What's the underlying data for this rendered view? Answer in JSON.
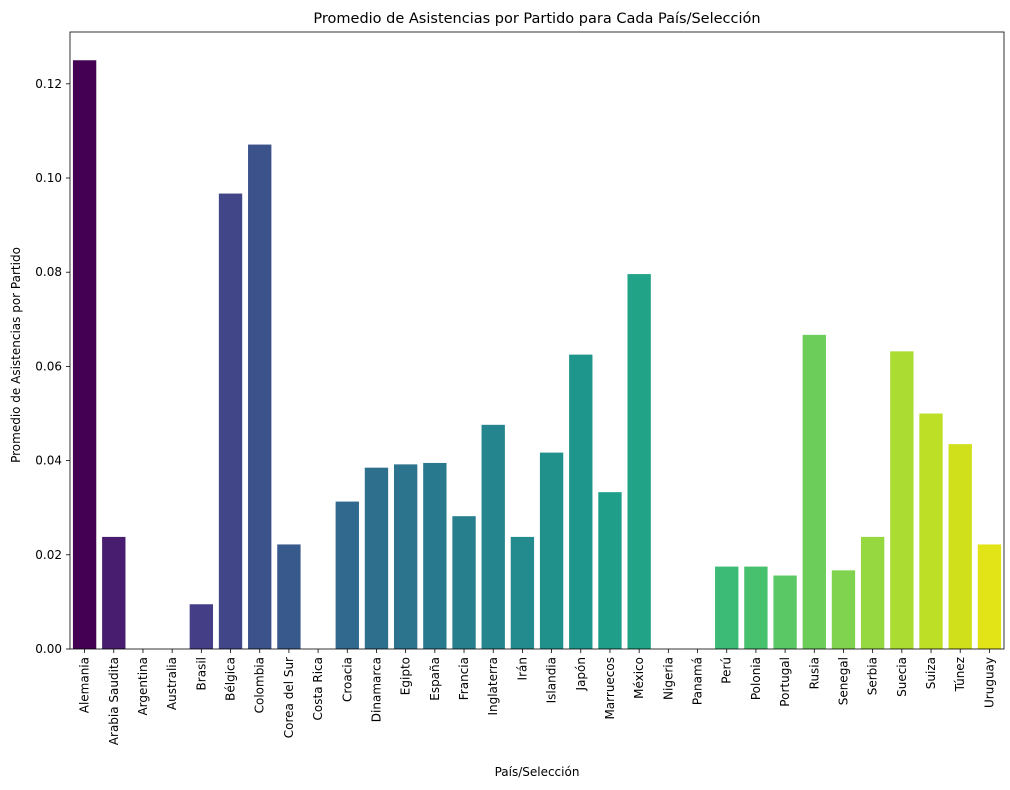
{
  "chart_data": {
    "type": "bar",
    "title": "Promedio de Asistencias por Partido para Cada País/Selección",
    "xlabel": "País/Selección",
    "ylabel": "Promedio de Asistencias por Partido",
    "ylim": [
      0,
      0.131
    ],
    "yticks": [
      "0.00",
      "0.02",
      "0.04",
      "0.06",
      "0.08",
      "0.10",
      "0.12"
    ],
    "grid": false,
    "legend": false,
    "palette": "viridis",
    "categories": [
      "Alemania",
      "Arabia Saudita",
      "Argentina",
      "Australia",
      "Brasil",
      "Bélgica",
      "Colombia",
      "Corea del Sur",
      "Costa Rica",
      "Croacia",
      "Dinamarca",
      "Egipto",
      "España",
      "Francia",
      "Inglaterra",
      "Irán",
      "Islandia",
      "Japón",
      "Marruecos",
      "México",
      "Nigeria",
      "Panamá",
      "Perú",
      "Polonia",
      "Portugal",
      "Rusia",
      "Senegal",
      "Serbia",
      "Suecia",
      "Suiza",
      "Túnez",
      "Uruguay"
    ],
    "values": [
      0.125,
      0.0238,
      0.0,
      0.0,
      0.0095,
      0.0967,
      0.1071,
      0.0222,
      0.0,
      0.0313,
      0.0385,
      0.0392,
      0.0395,
      0.0282,
      0.0476,
      0.0238,
      0.0417,
      0.0625,
      0.0333,
      0.0796,
      0.0,
      0.0,
      0.0175,
      0.0175,
      0.0156,
      0.0667,
      0.0167,
      0.0238,
      0.0632,
      0.05,
      0.0435,
      0.0222
    ],
    "colors": [
      "#440154",
      "#481d6f",
      "#472c7a",
      "#453781",
      "#433e85",
      "#404688",
      "#3b528b",
      "#38598c",
      "#355f8d",
      "#31688e",
      "#2e6f8e",
      "#2c738e",
      "#29798e",
      "#277f8e",
      "#25858e",
      "#238a8d",
      "#21918c",
      "#1f968b",
      "#1f9e89",
      "#20a386",
      "#25ab82",
      "#2eb37c",
      "#3bbb75",
      "#48c16e",
      "#5ac864",
      "#6ccd5a",
      "#7fd34e",
      "#95d840",
      "#aadc32",
      "#bddf26",
      "#d0e11c",
      "#e2e418"
    ]
  }
}
